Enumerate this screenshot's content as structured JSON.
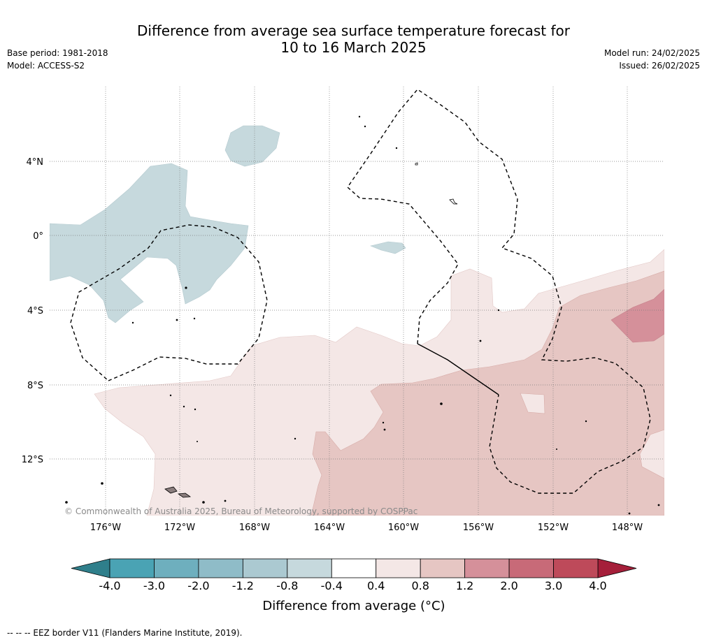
{
  "header": {
    "title_line1": "Difference from average sea surface temperature forecast for",
    "title_line2": "10 to 16 March 2025",
    "base_period": "Base period: 1981-2018",
    "model": "Model: ACCESS-S2",
    "model_run": "Model run: 24/02/2025",
    "issued": "Issued: 26/02/2025"
  },
  "map": {
    "lat_labels": [
      "4°N",
      "0°",
      "4°S",
      "8°S",
      "12°S"
    ],
    "lon_labels": [
      "176°W",
      "172°W",
      "168°W",
      "164°W",
      "160°W",
      "156°W",
      "152°W",
      "148°W"
    ],
    "copyright": "© Commonwealth of Australia 2025, Bureau of Meteorology, supported by COSPPac"
  },
  "colorbar": {
    "ticks": [
      "-4.0",
      "-3.0",
      "-2.0",
      "-1.2",
      "-0.8",
      "-0.4",
      "0.4",
      "0.8",
      "1.2",
      "2.0",
      "3.0",
      "4.0"
    ],
    "colors": [
      "#4aa3b4",
      "#6eafbe",
      "#8fbcc8",
      "#abc9d1",
      "#c6d9dd",
      "#ffffff",
      "#f4e7e6",
      "#e6c6c3",
      "#d5909a",
      "#c86a78",
      "#be4a5a"
    ],
    "under_color": "#2f7f8b",
    "over_color": "#a51f3a",
    "title": "Difference from average (°C)"
  },
  "footer": {
    "legend": "-- -- -- EEZ border V11 (Flanders Marine Institute, 2019)."
  }
}
